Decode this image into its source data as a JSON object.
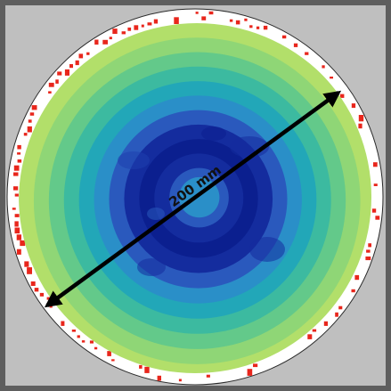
{
  "annotation": {
    "dimension_label": "200 mm"
  },
  "colors": {
    "outer_frame": "#5e5e5e",
    "panel_background": "#bfbfbf",
    "wafer_border": "#ffffff",
    "edge_highlight": "#e8261c",
    "arrow": "#000000",
    "label_text": "#111111",
    "colormap": [
      "#0b1f8f",
      "#142c9e",
      "#1e3fae",
      "#2a59bd",
      "#2e74c6",
      "#2a8fc8",
      "#22a7b8",
      "#3cbaa0",
      "#63c98a",
      "#8fd676",
      "#b2df6a"
    ]
  },
  "rings": [
    {
      "level": 5
    },
    {
      "level": 3
    },
    {
      "level": 1
    },
    {
      "level": 0
    },
    {
      "level": 1
    },
    {
      "level": 3
    },
    {
      "level": 5
    },
    {
      "level": 6
    },
    {
      "level": 7
    },
    {
      "level": 8
    },
    {
      "level": 9
    },
    {
      "level": 10
    }
  ]
}
